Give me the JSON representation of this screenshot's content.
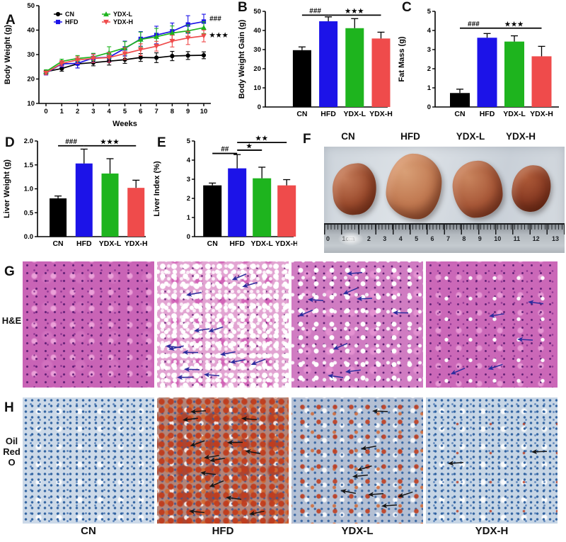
{
  "groups": [
    "CN",
    "HFD",
    "YDX-L",
    "YDX-H"
  ],
  "group_colors": [
    "#000000",
    "#1c13e8",
    "#1eb41e",
    "#ef4b4b"
  ],
  "chart_data": [
    {
      "panel": "A",
      "panel_label": "A",
      "type": "line",
      "xlabel": "Weeks",
      "ylabel": "Body Weight (g)",
      "x": [
        0,
        1,
        2,
        3,
        4,
        5,
        6,
        7,
        8,
        9,
        10
      ],
      "xtick_labels": [
        "0",
        "1",
        "2",
        "3",
        "4",
        "5",
        "6",
        "7",
        "8",
        "9",
        "10"
      ],
      "ylim": [
        10,
        50
      ],
      "yticks": [
        10,
        20,
        30,
        40,
        50
      ],
      "ytick_labels": [
        "10",
        "20",
        "30",
        "40",
        "50"
      ],
      "legend_position": "top-left",
      "series": [
        {
          "name": "CN",
          "marker": "circle",
          "color": "#000000",
          "values": [
            23.0,
            24.3,
            26.2,
            26.7,
            27.3,
            27.9,
            28.8,
            28.7,
            29.4,
            29.6,
            29.7
          ],
          "errors": [
            0.7,
            1.1,
            1.7,
            1.3,
            1.6,
            1.5,
            1.6,
            2.0,
            1.9,
            1.6,
            1.4
          ]
        },
        {
          "name": "HFD",
          "marker": "square",
          "color": "#1c13e8",
          "values": [
            22.4,
            26.2,
            26.4,
            28.6,
            28.9,
            32.5,
            36.4,
            38.0,
            39.5,
            42.3,
            43.5
          ],
          "errors": [
            0.7,
            1.3,
            1.9,
            1.7,
            2.0,
            3.0,
            3.0,
            3.6,
            3.4,
            3.6,
            3.0
          ]
        },
        {
          "name": "YDX-L",
          "marker": "triangle",
          "color": "#1eb41e",
          "values": [
            23.0,
            27.2,
            28.4,
            29.0,
            30.8,
            32.7,
            36.2,
            37.3,
            38.8,
            39.7,
            41.0
          ],
          "errors": [
            0.7,
            0.9,
            1.2,
            1.5,
            2.4,
            2.6,
            3.0,
            3.4,
            2.9,
            2.4,
            2.4
          ]
        },
        {
          "name": "YDX-H",
          "marker": "triangle-down",
          "color": "#ef4b4b",
          "values": [
            22.5,
            26.4,
            27.8,
            28.4,
            28.8,
            30.4,
            32.0,
            33.4,
            35.5,
            36.8,
            37.6
          ],
          "errors": [
            0.7,
            1.1,
            1.4,
            1.7,
            2.0,
            2.4,
            2.4,
            2.0,
            2.4,
            2.7,
            2.4
          ]
        }
      ],
      "annotations": [
        {
          "x": 10,
          "y": 44.6,
          "label": "###"
        },
        {
          "x": 10,
          "y": 38.0,
          "label": "***"
        }
      ]
    },
    {
      "panel": "B",
      "panel_label": "B",
      "type": "bar",
      "ylabel": "Body Weight Gain (g)",
      "categories": [
        "CN",
        "HFD",
        "YDX-L",
        "YDX-H"
      ],
      "values": [
        29.7,
        44.8,
        41.2,
        35.8
      ],
      "errors": [
        1.7,
        2.3,
        5.0,
        3.3
      ],
      "colors": [
        "#000000",
        "#1c13e8",
        "#1eb41e",
        "#ef4b4b"
      ],
      "ylim": [
        0,
        50
      ],
      "yticks": [
        0,
        10,
        20,
        30,
        40,
        50
      ],
      "ytick_labels": [
        "0",
        "10",
        "20",
        "30",
        "40",
        "50"
      ],
      "annotations": [
        {
          "x1": 0,
          "x2": 1,
          "y": 48.0,
          "label": "###"
        },
        {
          "x1": 1,
          "x2": 3,
          "y": 48.0,
          "label": "***"
        }
      ]
    },
    {
      "panel": "C",
      "panel_label": "C",
      "type": "bar",
      "ylabel": "Fat Mass (g)",
      "categories": [
        "CN",
        "HFD",
        "YDX-L",
        "YDX-H"
      ],
      "values": [
        0.73,
        3.62,
        3.42,
        2.65
      ],
      "errors": [
        0.2,
        0.22,
        0.3,
        0.52
      ],
      "colors": [
        "#000000",
        "#1c13e8",
        "#1eb41e",
        "#ef4b4b"
      ],
      "ylim": [
        0,
        5
      ],
      "yticks": [
        0,
        1,
        2,
        3,
        4,
        5
      ],
      "ytick_labels": [
        "0",
        "1",
        "2",
        "3",
        "4",
        "5"
      ],
      "annotations": [
        {
          "x1": 0,
          "x2": 1,
          "y": 4.12,
          "label": "###"
        },
        {
          "x1": 1,
          "x2": 3,
          "y": 4.12,
          "label": "***"
        }
      ]
    },
    {
      "panel": "D",
      "panel_label": "D",
      "type": "bar",
      "ylabel": "Liver Weight (g)",
      "categories": [
        "CN",
        "HFD",
        "YDX-L",
        "YDX-H"
      ],
      "values": [
        0.8,
        1.53,
        1.32,
        1.02
      ],
      "errors": [
        0.05,
        0.3,
        0.31,
        0.16
      ],
      "colors": [
        "#000000",
        "#1c13e8",
        "#1eb41e",
        "#ef4b4b"
      ],
      "ylim": [
        0,
        2
      ],
      "yticks": [
        0,
        0.5,
        1,
        1.5,
        2
      ],
      "ytick_labels": [
        "0.0",
        "0.5",
        "1.0",
        "1.5",
        "2.0"
      ],
      "annotations": [
        {
          "x1": 0,
          "x2": 1,
          "y": 1.9,
          "label": "###"
        },
        {
          "x1": 1,
          "x2": 3,
          "y": 1.9,
          "label": "***"
        }
      ]
    },
    {
      "panel": "E",
      "panel_label": "E",
      "type": "bar",
      "ylabel": "Liver Index (%)",
      "categories": [
        "CN",
        "HFD",
        "YDX-L",
        "YDX-H"
      ],
      "values": [
        2.68,
        3.57,
        3.05,
        2.68
      ],
      "errors": [
        0.12,
        0.72,
        0.58,
        0.3
      ],
      "colors": [
        "#000000",
        "#1c13e8",
        "#1eb41e",
        "#ef4b4b"
      ],
      "ylim": [
        0,
        5
      ],
      "yticks": [
        0,
        1,
        2,
        3,
        4,
        5
      ],
      "ytick_labels": [
        "0",
        "1",
        "2",
        "3",
        "4",
        "5"
      ],
      "annotations": [
        {
          "x1": 0,
          "x2": 1,
          "y": 4.35,
          "label": "##"
        },
        {
          "x1": 1,
          "x2": 2,
          "y": 4.52,
          "label": "*"
        },
        {
          "x1": 1,
          "x2": 3,
          "y": 4.92,
          "label": "**"
        }
      ]
    }
  ],
  "panel_f": {
    "label": "F",
    "group_labels": [
      "CN",
      "HFD",
      "YDX-L",
      "YDX-H"
    ],
    "ruler_labels": [
      "0",
      "1cm",
      "2",
      "3",
      "4",
      "5",
      "6",
      "7",
      "8",
      "9",
      "10",
      "11",
      "12",
      "13"
    ]
  },
  "histology": {
    "row_g": {
      "label": "G",
      "stain": "H&E",
      "arrow_color": "#2b2b9d",
      "images": [
        {
          "group": "CN",
          "severity": "none",
          "arrows": 0
        },
        {
          "group": "HFD",
          "severity": "severe",
          "arrows": 14
        },
        {
          "group": "YDX-L",
          "severity": "moderate",
          "arrows": 9
        },
        {
          "group": "YDX-H",
          "severity": "mild",
          "arrows": 5
        }
      ]
    },
    "row_h": {
      "label": "H",
      "stain": "Oil Red O",
      "stain_lines": [
        "Oil",
        "Red",
        "O"
      ],
      "arrow_color": "#161616",
      "images": [
        {
          "group": "CN",
          "severity": "none",
          "arrows": 0
        },
        {
          "group": "HFD",
          "severity": "severe",
          "arrows": 13
        },
        {
          "group": "YDX-L",
          "severity": "moderate",
          "arrows": 8
        },
        {
          "group": "YDX-H",
          "severity": "mild",
          "arrows": 2
        }
      ]
    },
    "column_labels": [
      "CN",
      "HFD",
      "YDX-L",
      "YDX-H"
    ]
  }
}
